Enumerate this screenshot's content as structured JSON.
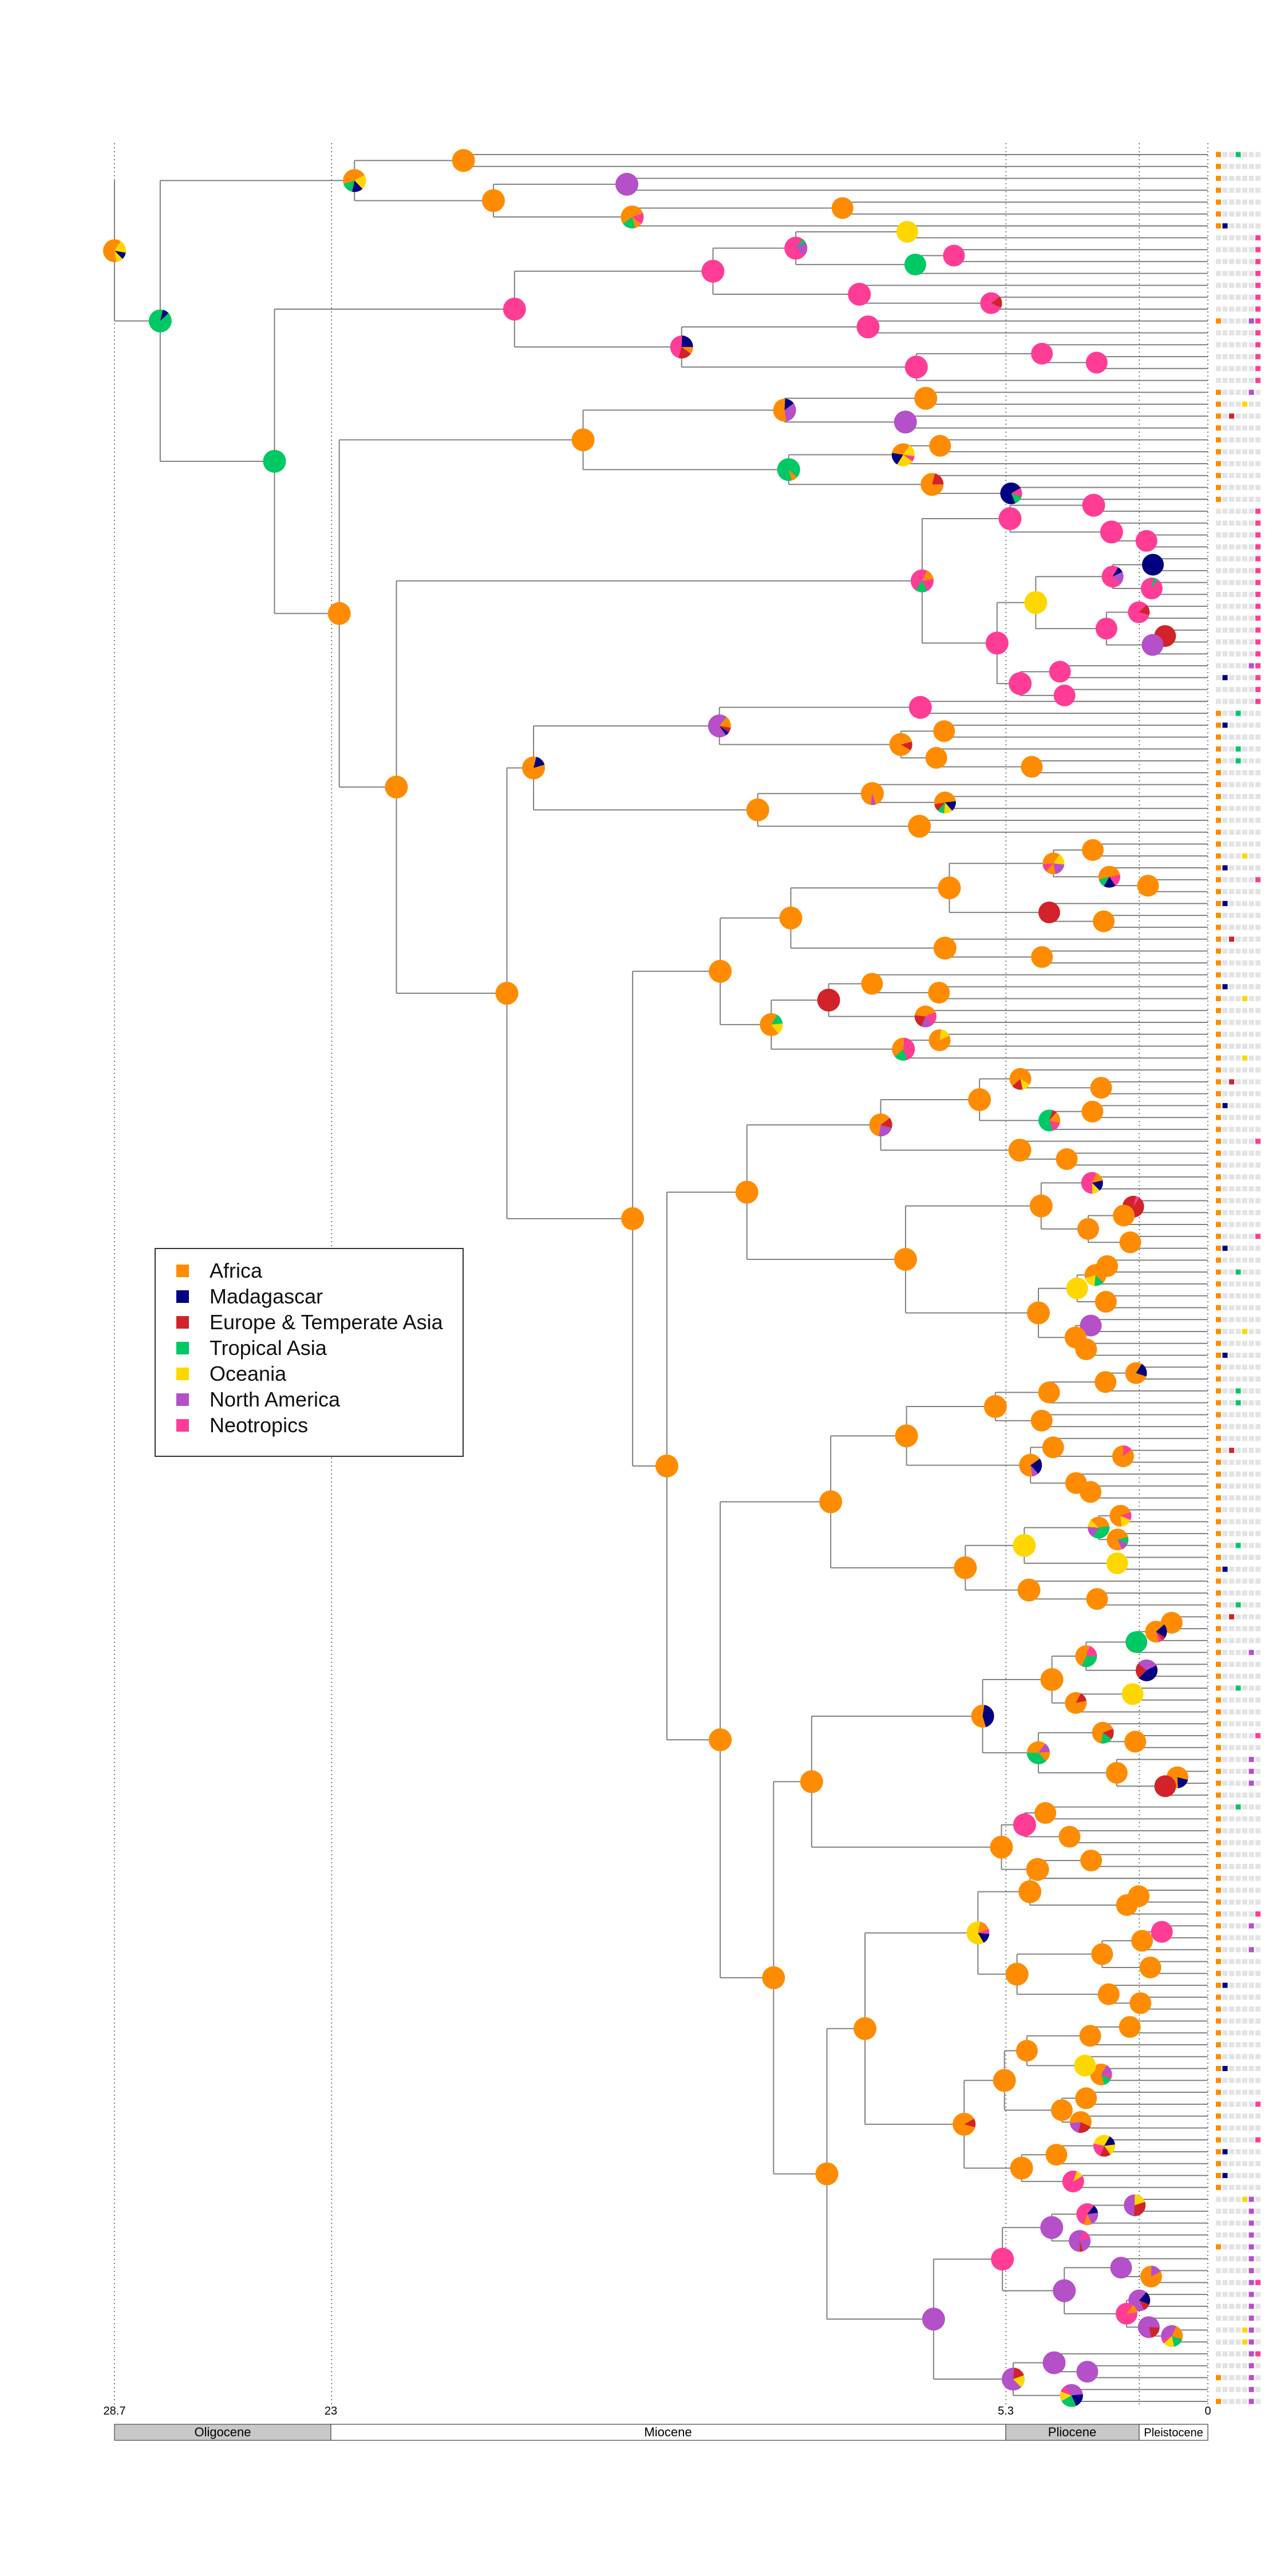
{
  "legend": {
    "items": [
      {
        "label": "Africa",
        "color": "#FF8C00"
      },
      {
        "label": "Madagascar",
        "color": "#000080"
      },
      {
        "label": "Europe & Temperate Asia",
        "color": "#D2232A"
      },
      {
        "label": "Tropical Asia",
        "color": "#00C864"
      },
      {
        "label": "Oceania",
        "color": "#FFD700"
      },
      {
        "label": "North America",
        "color": "#B450C8"
      },
      {
        "label": "Neotropics",
        "color": "#FF3C96"
      }
    ]
  },
  "time_axis": {
    "ticks": [
      {
        "label": "28.7",
        "value": 28.7
      },
      {
        "label": "23",
        "value": 23
      },
      {
        "label": "5.3",
        "value": 5.3
      },
      {
        "label": "0",
        "value": 0
      }
    ],
    "epochs": [
      {
        "label": "Oligocene",
        "start": 28.7,
        "end": 23,
        "fill": "#c8c8c8"
      },
      {
        "label": "Miocene",
        "start": 23,
        "end": 5.3,
        "fill": "#ffffff"
      },
      {
        "label": "Pliocene",
        "start": 5.3,
        "end": 1.8,
        "fill": "#c8c8c8"
      },
      {
        "label": "Pleistocene",
        "start": 1.8,
        "end": 0,
        "fill": "#ffffff"
      }
    ]
  },
  "tips": {
    "count": 190
  }
}
